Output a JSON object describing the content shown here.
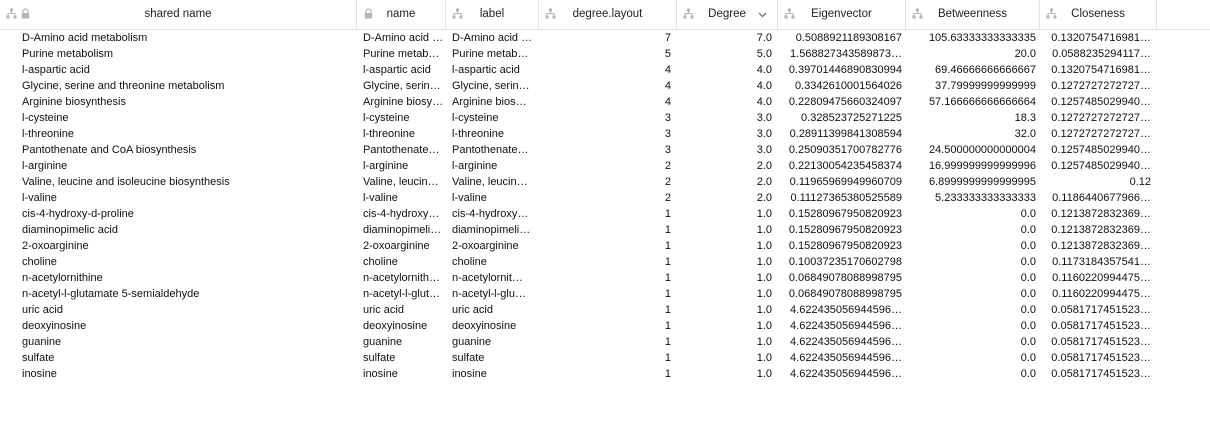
{
  "columns": [
    {
      "key": "shared_name",
      "label": "shared name",
      "icons": [
        "network-icon",
        "lock-icon"
      ]
    },
    {
      "key": "name",
      "label": "name",
      "icons": [
        "lock-icon"
      ]
    },
    {
      "key": "label",
      "label": "label",
      "icons": [
        "network-icon"
      ]
    },
    {
      "key": "degree_layout",
      "label": "degree.layout",
      "icons": [
        "network-icon"
      ]
    },
    {
      "key": "degree",
      "label": "Degree",
      "icons": [
        "network-icon"
      ],
      "sort": "chevron-down-icon"
    },
    {
      "key": "eigenvector",
      "label": "Eigenvector",
      "icons": [
        "network-icon"
      ]
    },
    {
      "key": "betweenness",
      "label": "Betweenness",
      "icons": [
        "network-icon"
      ]
    },
    {
      "key": "closeness",
      "label": "Closeness",
      "icons": [
        "network-icon"
      ]
    }
  ],
  "rows": [
    {
      "shared_name": "D-Amino acid metabolism",
      "name": "D-Amino acid …",
      "label": "D-Amino acid …",
      "degree_layout": "7",
      "degree": "7.0",
      "eigenvector": "0.508892118930816​7",
      "betweenness": "105.63333333333335",
      "closeness": "0.1320754716981…"
    },
    {
      "shared_name": "Purine metabolism",
      "name": "Purine metab…",
      "label": "Purine metab…",
      "degree_layout": "5",
      "degree": "5.0",
      "eigenvector": "1.568827343589873…",
      "betweenness": "20.0",
      "closeness": "0.0588235294117…"
    },
    {
      "shared_name": "l-aspartic acid",
      "name": "l-aspartic acid",
      "label": "l-aspartic acid",
      "degree_layout": "4",
      "degree": "4.0",
      "eigenvector": "0.39701446890830994",
      "betweenness": "69.46666666666667",
      "closeness": "0.1320754716981…"
    },
    {
      "shared_name": "Glycine, serine and threonine metabolism",
      "name": "Glycine, serin…",
      "label": "Glycine, serin…",
      "degree_layout": "4",
      "degree": "4.0",
      "eigenvector": "0.33426100015640​26",
      "betweenness": "37.79999999999999",
      "closeness": "0.1272727272727…"
    },
    {
      "shared_name": "Arginine biosynthesis",
      "name": "Arginine biosy…",
      "label": "Arginine bios…",
      "degree_layout": "4",
      "degree": "4.0",
      "eigenvector": "0.22809475660324097",
      "betweenness": "57.166666666666664",
      "closeness": "0.1257485029940…"
    },
    {
      "shared_name": "l-cysteine",
      "name": "l-cysteine",
      "label": "l-cysteine",
      "degree_layout": "3",
      "degree": "3.0",
      "eigenvector": "0.328523725271225",
      "betweenness": "18.3",
      "closeness": "0.1272727272727…"
    },
    {
      "shared_name": "l-threonine",
      "name": "l-threonine",
      "label": "l-threonine",
      "degree_layout": "3",
      "degree": "3.0",
      "eigenvector": "0.28911399841308594",
      "betweenness": "32.0",
      "closeness": "0.1272727272727…"
    },
    {
      "shared_name": "Pantothenate and CoA biosynthesis",
      "name": "Pantothenate…",
      "label": "Pantothenate…",
      "degree_layout": "3",
      "degree": "3.0",
      "eigenvector": "0.25090351700782776",
      "betweenness": "24.500000000000004",
      "closeness": "0.1257485029940…"
    },
    {
      "shared_name": "l-arginine",
      "name": "l-arginine",
      "label": "l-arginine",
      "degree_layout": "2",
      "degree": "2.0",
      "eigenvector": "0.22130054235458374",
      "betweenness": "16.999999999999996",
      "closeness": "0.1257485029940…"
    },
    {
      "shared_name": "Valine, leucine and isoleucine biosynthesis",
      "name": "Valine, leucin…",
      "label": "Valine, leucin…",
      "degree_layout": "2",
      "degree": "2.0",
      "eigenvector": "0.11965969949960709",
      "betweenness": "6.8999999999999995",
      "closeness": "0.12"
    },
    {
      "shared_name": "l-valine",
      "name": "l-valine",
      "label": "l-valine",
      "degree_layout": "2",
      "degree": "2.0",
      "eigenvector": "0.11127365380525589",
      "betweenness": "5.233333333333333",
      "closeness": "0.1186440677966…"
    },
    {
      "shared_name": "cis-4-hydroxy-d-proline",
      "name": "cis-4-hydroxy…",
      "label": "cis-4-hydroxy…",
      "degree_layout": "1",
      "degree": "1.0",
      "eigenvector": "0.15280967950820923",
      "betweenness": "0.0",
      "closeness": "0.1213872832369…"
    },
    {
      "shared_name": "diaminopimelic acid",
      "name": "diaminopimelic…",
      "label": "diaminopimeli…",
      "degree_layout": "1",
      "degree": "1.0",
      "eigenvector": "0.15280967950820923",
      "betweenness": "0.0",
      "closeness": "0.1213872832369…"
    },
    {
      "shared_name": "2-oxoarginine",
      "name": "2-oxoarginine",
      "label": "2-oxoarginine",
      "degree_layout": "1",
      "degree": "1.0",
      "eigenvector": "0.15280967950820923",
      "betweenness": "0.0",
      "closeness": "0.1213872832369…"
    },
    {
      "shared_name": "choline",
      "name": "choline",
      "label": "choline",
      "degree_layout": "1",
      "degree": "1.0",
      "eigenvector": "0.10037235170602798",
      "betweenness": "0.0",
      "closeness": "0.1173184357541…"
    },
    {
      "shared_name": "n-acetylornithine",
      "name": "n-acetylornith…",
      "label": "n-acetylornit…",
      "degree_layout": "1",
      "degree": "1.0",
      "eigenvector": "0.06849078088998795",
      "betweenness": "0.0",
      "closeness": "0.1160220994475…"
    },
    {
      "shared_name": "n-acetyl-l-glutamate 5-semialdehyde",
      "name": "n-acetyl-l-glut…",
      "label": "n-acetyl-l-glu…",
      "degree_layout": "1",
      "degree": "1.0",
      "eigenvector": "0.06849078088998795",
      "betweenness": "0.0",
      "closeness": "0.1160220994475…"
    },
    {
      "shared_name": "uric acid",
      "name": "uric acid",
      "label": "uric acid",
      "degree_layout": "1",
      "degree": "1.0",
      "eigenvector": "4.622435056944596…",
      "betweenness": "0.0",
      "closeness": "0.0581717451523…"
    },
    {
      "shared_name": "deoxyinosine",
      "name": "deoxyinosine",
      "label": "deoxyinosine",
      "degree_layout": "1",
      "degree": "1.0",
      "eigenvector": "4.622435056944596…",
      "betweenness": "0.0",
      "closeness": "0.0581717451523…"
    },
    {
      "shared_name": "guanine",
      "name": "guanine",
      "label": "guanine",
      "degree_layout": "1",
      "degree": "1.0",
      "eigenvector": "4.622435056944596…",
      "betweenness": "0.0",
      "closeness": "0.0581717451523…"
    },
    {
      "shared_name": "sulfate",
      "name": "sulfate",
      "label": "sulfate",
      "degree_layout": "1",
      "degree": "1.0",
      "eigenvector": "4.622435056944596…",
      "betweenness": "0.0",
      "closeness": "0.0581717451523…"
    },
    {
      "shared_name": "inosine",
      "name": "inosine",
      "label": "inosine",
      "degree_layout": "1",
      "degree": "1.0",
      "eigenvector": "4.622435056944596…",
      "betweenness": "0.0",
      "closeness": "0.0581717451523…"
    }
  ],
  "colors": {
    "header_border": "#e2e2e2",
    "icon_gray": "#b5b5b5",
    "text": "#111111"
  }
}
